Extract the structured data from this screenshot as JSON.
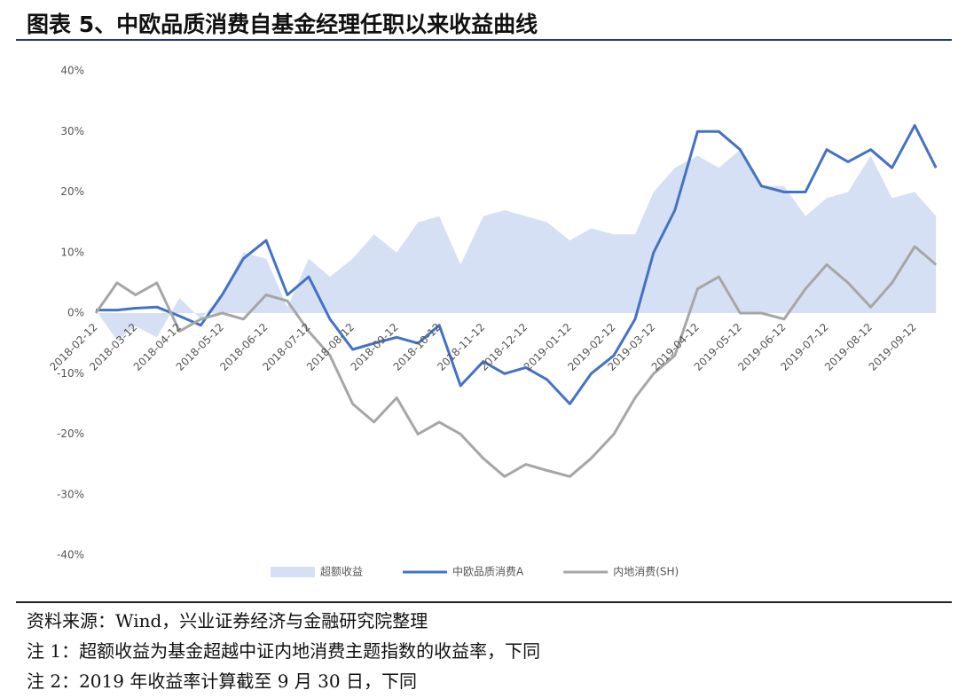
{
  "chart_data": {
    "type": "line",
    "title": "图表 5、中欧品质消费自基金经理任职以来收益曲线",
    "x": [
      "2018-02-12",
      "2018-02-27",
      "2018-03-12",
      "2018-03-27",
      "2018-04-12",
      "2018-04-27",
      "2018-05-12",
      "2018-05-27",
      "2018-06-12",
      "2018-06-27",
      "2018-07-12",
      "2018-07-27",
      "2018-08-12",
      "2018-08-27",
      "2018-09-12",
      "2018-09-27",
      "2018-10-12",
      "2018-10-27",
      "2018-11-12",
      "2018-11-27",
      "2018-12-12",
      "2018-12-27",
      "2019-01-12",
      "2019-01-27",
      "2019-02-12",
      "2019-02-27",
      "2019-03-12",
      "2019-03-27",
      "2019-04-12",
      "2019-04-27",
      "2019-05-12",
      "2019-05-27",
      "2019-06-12",
      "2019-06-27",
      "2019-07-12",
      "2019-07-27",
      "2019-08-12",
      "2019-08-27",
      "2019-09-12",
      "2019-09-27"
    ],
    "series": [
      {
        "name": "超额收益",
        "color": "#d6e0f4",
        "style": "area",
        "values": [
          0.5,
          -4.5,
          -2.2,
          -4,
          2.5,
          -1,
          3,
          10,
          9,
          1,
          9,
          6,
          9,
          13,
          10,
          15,
          16,
          8,
          16,
          17,
          16,
          15,
          12,
          14,
          13,
          13,
          20,
          24,
          26,
          24,
          27,
          21,
          21,
          16,
          19,
          20,
          26,
          19,
          20,
          16
        ]
      },
      {
        "name": "中欧品质消费A",
        "color": "#4472c4",
        "style": "line",
        "values": [
          0.5,
          0.5,
          0.8,
          1,
          -0.5,
          -2,
          3,
          9,
          12,
          3,
          6,
          -1,
          -6,
          -5,
          -4,
          -5,
          -2,
          -12,
          -8,
          -10,
          -9,
          -11,
          -15,
          -10,
          -7,
          -1,
          10,
          17,
          30,
          30,
          27,
          21,
          20,
          20,
          27,
          25,
          27,
          24,
          31,
          24
        ]
      },
      {
        "name": "内地消费(SH)",
        "color": "#a6a6a6",
        "style": "line",
        "values": [
          0,
          5,
          3,
          5,
          -3,
          -1,
          0,
          -1,
          3,
          2,
          -3,
          -7,
          -15,
          -18,
          -14,
          -20,
          -18,
          -20,
          -24,
          -27,
          -25,
          -26,
          -27,
          -24,
          -20,
          -14,
          -10,
          -7,
          4,
          6,
          0,
          0,
          -1,
          4,
          8,
          5,
          1,
          5,
          11,
          8
        ]
      }
    ],
    "xlim": [
      "2018-02-12",
      "2019-09-30"
    ],
    "xticks": [
      "2018-02-12",
      "2018-03-12",
      "2018-04-12",
      "2018-05-12",
      "2018-06-12",
      "2018-07-12",
      "2018-08-12",
      "2018-09-12",
      "2018-10-12",
      "2018-11-12",
      "2018-12-12",
      "2019-01-12",
      "2019-02-12",
      "2019-03-12",
      "2019-04-12",
      "2019-05-12",
      "2019-06-12",
      "2019-07-12",
      "2019-08-12",
      "2019-09-12"
    ],
    "ylim": [
      -40,
      40
    ],
    "yticks": [
      {
        "value": -40,
        "label": "-40%"
      },
      {
        "value": -30,
        "label": "-30%"
      },
      {
        "value": -20,
        "label": "-20%"
      },
      {
        "value": -10,
        "label": "-10%"
      },
      {
        "value": 0,
        "label": "0%"
      },
      {
        "value": 10,
        "label": "10%"
      },
      {
        "value": 20,
        "label": "20%"
      },
      {
        "value": 30,
        "label": "30%"
      },
      {
        "value": 40,
        "label": "40%"
      }
    ],
    "legend": "bottom",
    "notes": [
      "资料来源：Wind，兴业证券经济与金融研究院整理",
      "注 1：超额收益为基金超越中证内地消费主题指数的收益率，下同",
      "注 2：2019 年收益率计算截至 9 月 30 日，下同"
    ]
  }
}
